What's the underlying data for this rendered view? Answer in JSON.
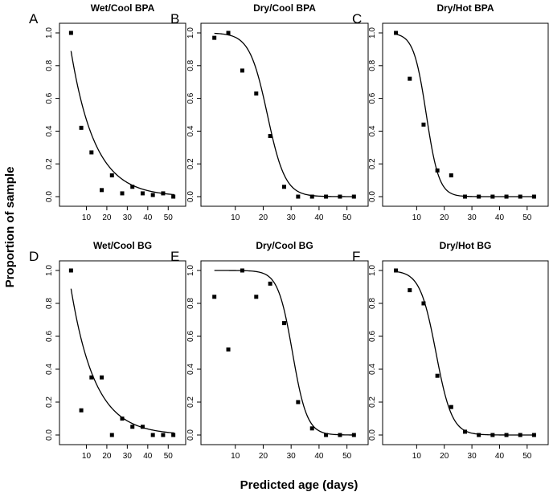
{
  "figure": {
    "ylabel": "Proportion of sample",
    "xlabel": "Predicted age (days)"
  },
  "chart_data": [
    {
      "type": "scatter",
      "letter": "A",
      "title": "Wet/Cool BPA",
      "xlim": [
        0,
        55
      ],
      "ylim": [
        0,
        1
      ],
      "xticks": [
        10,
        20,
        30,
        40,
        50
      ],
      "yticks": [
        0.0,
        0.2,
        0.4,
        0.6,
        0.8,
        1.0
      ],
      "x": [
        2.5,
        7.5,
        12.5,
        17.5,
        22.5,
        27.5,
        32.5,
        37.5,
        42.5,
        47.5,
        52.5
      ],
      "y": [
        1.0,
        0.42,
        0.27,
        0.04,
        0.13,
        0.02,
        0.06,
        0.02,
        0.01,
        0.02,
        0.0
      ],
      "fit": {
        "shape": "exp",
        "a": 1.1,
        "k": 0.085
      }
    },
    {
      "type": "scatter",
      "letter": "B",
      "title": "Dry/Cool BPA",
      "xlim": [
        0,
        55
      ],
      "ylim": [
        0,
        1
      ],
      "xticks": [
        10,
        20,
        30,
        40,
        50
      ],
      "yticks": [
        0.0,
        0.2,
        0.4,
        0.6,
        0.8,
        1.0
      ],
      "x": [
        2.5,
        7.5,
        12.5,
        17.5,
        22.5,
        27.5,
        32.5,
        37.5,
        42.5,
        47.5,
        52.5
      ],
      "y": [
        0.97,
        1.0,
        0.77,
        0.63,
        0.37,
        0.06,
        0.0,
        0.0,
        0.0,
        0.0,
        0.0
      ],
      "fit": {
        "shape": "logistic",
        "m": 21.5,
        "s": 3.2
      }
    },
    {
      "type": "scatter",
      "letter": "C",
      "title": "Dry/Hot BPA",
      "xlim": [
        0,
        55
      ],
      "ylim": [
        0,
        1
      ],
      "xticks": [
        10,
        20,
        30,
        40,
        50
      ],
      "yticks": [
        0.0,
        0.2,
        0.4,
        0.6,
        0.8,
        1.0
      ],
      "x": [
        2.5,
        7.5,
        12.5,
        17.5,
        22.5,
        27.5,
        32.5,
        37.5,
        42.5,
        47.5,
        52.5
      ],
      "y": [
        1.0,
        0.72,
        0.44,
        0.16,
        0.13,
        0.0,
        0.0,
        0.0,
        0.0,
        0.0,
        0.0
      ],
      "fit": {
        "shape": "logistic",
        "m": 13.5,
        "s": 2.3
      }
    },
    {
      "type": "scatter",
      "letter": "D",
      "title": "Wet/Cool BG",
      "xlim": [
        0,
        55
      ],
      "ylim": [
        0,
        1
      ],
      "xticks": [
        10,
        20,
        30,
        40,
        50
      ],
      "yticks": [
        0.0,
        0.2,
        0.4,
        0.6,
        0.8,
        1.0
      ],
      "x": [
        2.5,
        7.5,
        12.5,
        17.5,
        22.5,
        27.5,
        32.5,
        37.5,
        42.5,
        47.5,
        52.5
      ],
      "y": [
        1.0,
        0.15,
        0.35,
        0.35,
        0.0,
        0.1,
        0.05,
        0.05,
        0.0,
        0.0,
        0.0
      ],
      "fit": {
        "shape": "exp",
        "a": 1.1,
        "k": 0.085
      }
    },
    {
      "type": "scatter",
      "letter": "E",
      "title": "Dry/Cool BG",
      "xlim": [
        0,
        55
      ],
      "ylim": [
        0,
        1
      ],
      "xticks": [
        10,
        20,
        30,
        40,
        50
      ],
      "yticks": [
        0.0,
        0.2,
        0.4,
        0.6,
        0.8,
        1.0
      ],
      "x": [
        2.5,
        7.5,
        12.5,
        17.5,
        22.5,
        27.5,
        32.5,
        37.5,
        42.5,
        47.5,
        52.5
      ],
      "y": [
        0.84,
        0.52,
        1.0,
        0.84,
        0.92,
        0.68,
        0.2,
        0.04,
        0.0,
        0.0,
        0.0
      ],
      "fit": {
        "shape": "logistic",
        "m": 30.5,
        "s": 2.6
      }
    },
    {
      "type": "scatter",
      "letter": "F",
      "title": "Dry/Hot BG",
      "xlim": [
        0,
        55
      ],
      "ylim": [
        0,
        1
      ],
      "xticks": [
        10,
        20,
        30,
        40,
        50
      ],
      "yticks": [
        0.0,
        0.2,
        0.4,
        0.6,
        0.8,
        1.0
      ],
      "x": [
        2.5,
        7.5,
        12.5,
        17.5,
        22.5,
        27.5,
        32.5,
        37.5,
        42.5,
        47.5,
        52.5
      ],
      "y": [
        1.0,
        0.88,
        0.8,
        0.36,
        0.17,
        0.02,
        0.0,
        0.0,
        0.0,
        0.0,
        0.0
      ],
      "fit": {
        "shape": "logistic",
        "m": 17.0,
        "s": 2.9
      }
    }
  ]
}
